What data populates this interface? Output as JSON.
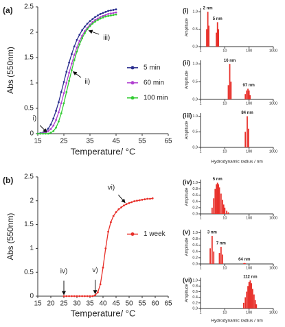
{
  "chart_data": [
    {
      "type": "line",
      "panel_label": "(a)",
      "xlabel": "Temperature/ °C",
      "ylabel": "Abs (550nm)",
      "x": [
        15,
        16,
        17,
        18,
        19,
        20,
        21,
        22,
        23,
        24,
        25,
        26,
        27,
        28,
        29,
        30,
        31,
        32,
        33,
        34,
        35,
        36,
        37,
        38,
        39,
        40,
        41,
        42,
        43,
        44,
        45
      ],
      "series": [
        {
          "name": "5 min",
          "color": "#2b2f8f",
          "values": [
            0,
            0.01,
            0.02,
            0.05,
            0.1,
            0.18,
            0.3,
            0.45,
            0.62,
            0.82,
            1.02,
            1.22,
            1.4,
            1.57,
            1.72,
            1.85,
            1.95,
            2.04,
            2.11,
            2.17,
            2.22,
            2.26,
            2.3,
            2.33,
            2.36,
            2.38,
            2.4,
            2.42,
            2.43,
            2.44,
            2.45
          ]
        },
        {
          "name": "60 min",
          "color": "#b040d0",
          "values": [
            0,
            0,
            0.01,
            0.02,
            0.05,
            0.09,
            0.16,
            0.27,
            0.42,
            0.6,
            0.8,
            1.0,
            1.2,
            1.38,
            1.55,
            1.7,
            1.83,
            1.93,
            2.02,
            2.09,
            2.15,
            2.2,
            2.24,
            2.27,
            2.3,
            2.32,
            2.34,
            2.36,
            2.37,
            2.38,
            2.39
          ]
        },
        {
          "name": "100 min",
          "color": "#33cc33",
          "values": [
            0,
            0,
            0,
            0,
            0,
            0.02,
            0.05,
            0.12,
            0.24,
            0.4,
            0.6,
            0.82,
            1.04,
            1.25,
            1.45,
            1.62,
            1.76,
            1.88,
            1.98,
            2.06,
            2.12,
            2.17,
            2.21,
            2.24,
            2.27,
            2.29,
            2.31,
            2.32,
            2.33,
            2.34,
            2.35
          ]
        }
      ],
      "xlim": [
        15,
        65
      ],
      "xticks": [
        15,
        25,
        35,
        45,
        55,
        65
      ],
      "ylim": [
        0,
        2.5
      ],
      "yticks": [
        0,
        0.5,
        1,
        1.5,
        2,
        2.5
      ],
      "legend": "right",
      "annotations": [
        {
          "text": "i)",
          "x": 19
        },
        {
          "text": "ii)",
          "x": 28
        },
        {
          "text": "iii)",
          "x": 34
        }
      ]
    },
    {
      "type": "line",
      "panel_label": "(b)",
      "xlabel": "Temperature/ °C",
      "ylabel": "Abs (550nm)",
      "x": [
        25,
        26,
        27,
        28,
        29,
        30,
        31,
        32,
        33,
        34,
        35,
        36,
        37,
        38,
        39,
        40,
        41,
        42,
        43,
        44,
        45,
        46,
        47,
        48,
        49,
        50,
        51,
        52,
        53,
        54,
        55,
        56,
        57,
        58,
        59
      ],
      "series": [
        {
          "name": "1 week",
          "color": "#e8302a",
          "values": [
            0,
            0,
            0,
            0,
            0,
            0,
            0,
            0,
            0,
            0,
            0,
            0,
            0.02,
            0.08,
            0.25,
            0.6,
            1.0,
            1.35,
            1.55,
            1.68,
            1.76,
            1.82,
            1.86,
            1.9,
            1.93,
            1.95,
            1.97,
            1.99,
            2.0,
            2.01,
            2.02,
            2.03,
            2.04,
            2.04,
            2.05
          ]
        }
      ],
      "xlim": [
        15,
        65
      ],
      "xticks": [
        15,
        20,
        25,
        30,
        35,
        40,
        45,
        50,
        55,
        60,
        65
      ],
      "ylim": [
        0,
        2.5
      ],
      "yticks": [
        0,
        0.5,
        1,
        1.5,
        2,
        2.5
      ],
      "legend": "right",
      "annotations": [
        {
          "text": "iv)",
          "x": 25
        },
        {
          "text": "v)",
          "x": 37
        },
        {
          "text": "vi)",
          "x": 49
        }
      ]
    },
    {
      "type": "bar",
      "panel_label": "(i)",
      "ylabel": "Amplitude",
      "xscale": "log",
      "color": "#e8302a",
      "x": [
        1.8,
        2,
        2.2,
        4.5,
        5,
        5.5
      ],
      "values": [
        0.5,
        1.0,
        0.6,
        0.4,
        0.7,
        0.5
      ],
      "xlim": [
        1,
        1000
      ],
      "xticks": [
        1,
        10,
        100,
        1000
      ],
      "ylim": [
        0,
        1.1
      ],
      "yticks": [
        {
          "value": 0,
          "label": "0.0"
        },
        {
          "value": 0.5,
          "label": "0.5"
        },
        {
          "value": 1,
          "label": "1.0"
        }
      ],
      "labels": [
        {
          "text": "2 nm",
          "x": 2
        },
        {
          "text": "5 nm",
          "x": 5
        }
      ]
    },
    {
      "type": "bar",
      "panel_label": "(ii)",
      "ylabel": "Amplitude",
      "xscale": "log",
      "color": "#e8302a",
      "x": [
        14,
        16,
        18,
        70,
        80,
        90,
        100,
        110
      ],
      "values": [
        0.4,
        1.0,
        0.5,
        0.15,
        0.25,
        0.3,
        0.25,
        0.12
      ],
      "xlim": [
        1,
        1000
      ],
      "xticks": [
        1,
        10,
        100,
        1000
      ],
      "ylim": [
        0,
        1.1
      ],
      "yticks": [
        {
          "value": 0,
          "label": "0.0"
        },
        {
          "value": 0.5,
          "label": "0.5"
        },
        {
          "value": 1,
          "label": "1.0"
        }
      ],
      "labels": [
        {
          "text": "16 nm",
          "x": 16
        },
        {
          "text": "97 nm",
          "x": 97
        }
      ]
    },
    {
      "type": "bar",
      "panel_label": "(iii)",
      "ylabel": "Amplitude",
      "xlabel": "Hydrodynamic radius / nm",
      "xscale": "log",
      "color": "#e8302a",
      "x": [
        70,
        84,
        95
      ],
      "values": [
        0.5,
        1.0,
        0.6
      ],
      "xlim": [
        1,
        1000
      ],
      "xticks": [
        1,
        10,
        100,
        1000
      ],
      "ylim": [
        0,
        1.1
      ],
      "yticks": [
        {
          "value": 0,
          "label": "0.0"
        },
        {
          "value": 0.5,
          "label": "0.5"
        },
        {
          "value": 1,
          "label": "1.0"
        }
      ],
      "labels": [
        {
          "text": "84 nm",
          "x": 84
        }
      ]
    },
    {
      "type": "bar",
      "panel_label": "(iv)",
      "ylabel": "Amplitude",
      "xscale": "log",
      "color": "#e8302a",
      "x": [
        3,
        3.5,
        4,
        4.5,
        5,
        5.5,
        6,
        7,
        8,
        9,
        10,
        12,
        14
      ],
      "values": [
        0.2,
        0.5,
        0.8,
        0.95,
        1.0,
        0.95,
        0.85,
        0.65,
        0.45,
        0.3,
        0.2,
        0.1,
        0.05
      ],
      "xlim": [
        1,
        1000
      ],
      "xticks": [
        1,
        10,
        100,
        1000
      ],
      "ylim": [
        0,
        1.1
      ],
      "yticks": [
        {
          "value": 0,
          "label": "0.0"
        },
        {
          "value": 0.2,
          "label": "0.2"
        },
        {
          "value": 0.4,
          "label": "0.4"
        },
        {
          "value": 0.6,
          "label": "0.6"
        },
        {
          "value": 0.8,
          "label": "0.8"
        },
        {
          "value": 1,
          "label": "1.0"
        }
      ],
      "labels": [
        {
          "text": "5 nm",
          "x": 5
        }
      ]
    },
    {
      "type": "bar",
      "panel_label": "(v)",
      "ylabel": "Amplitude",
      "xscale": "log",
      "color": "#e8302a",
      "x": [
        2.5,
        3,
        3.5,
        6,
        7,
        8,
        60,
        64,
        70
      ],
      "values": [
        0.5,
        0.9,
        0.4,
        0.35,
        0.55,
        0.3,
        0.02,
        0.03,
        0.02
      ],
      "xlim": [
        1,
        1000
      ],
      "xticks": [
        1,
        10,
        100,
        1000
      ],
      "ylim": [
        0,
        1.1
      ],
      "yticks": [
        {
          "value": 0,
          "label": "0.0"
        },
        {
          "value": 0.2,
          "label": "0.2"
        },
        {
          "value": 0.4,
          "label": "0.4"
        },
        {
          "value": 0.6,
          "label": "0.6"
        },
        {
          "value": 0.8,
          "label": "0.8"
        },
        {
          "value": 1,
          "label": "1.0"
        }
      ],
      "labels": [
        {
          "text": "3 nm",
          "x": 3
        },
        {
          "text": "7 nm",
          "x": 7
        },
        {
          "text": "64 nm",
          "x": 64
        }
      ]
    },
    {
      "type": "bar",
      "panel_label": "(vi)",
      "ylabel": "Amplitude",
      "xlabel": "Hydrodynamic radius / nm",
      "xscale": "log",
      "color": "#e8302a",
      "x": [
        60,
        70,
        80,
        90,
        100,
        112,
        125,
        140,
        160,
        180,
        200
      ],
      "values": [
        0.2,
        0.4,
        0.6,
        0.8,
        0.95,
        1.0,
        0.9,
        0.7,
        0.5,
        0.3,
        0.15
      ],
      "xlim": [
        1,
        1000
      ],
      "xticks": [
        1,
        10,
        100,
        1000
      ],
      "ylim": [
        0,
        1.1
      ],
      "yticks": [
        {
          "value": 0,
          "label": "0.0"
        },
        {
          "value": 0.2,
          "label": "0.2"
        },
        {
          "value": 0.4,
          "label": "0.4"
        },
        {
          "value": 0.6,
          "label": "0.6"
        },
        {
          "value": 0.8,
          "label": "0.8"
        },
        {
          "value": 1,
          "label": "1.0"
        }
      ],
      "labels": [
        {
          "text": "112 nm",
          "x": 112
        }
      ]
    }
  ]
}
